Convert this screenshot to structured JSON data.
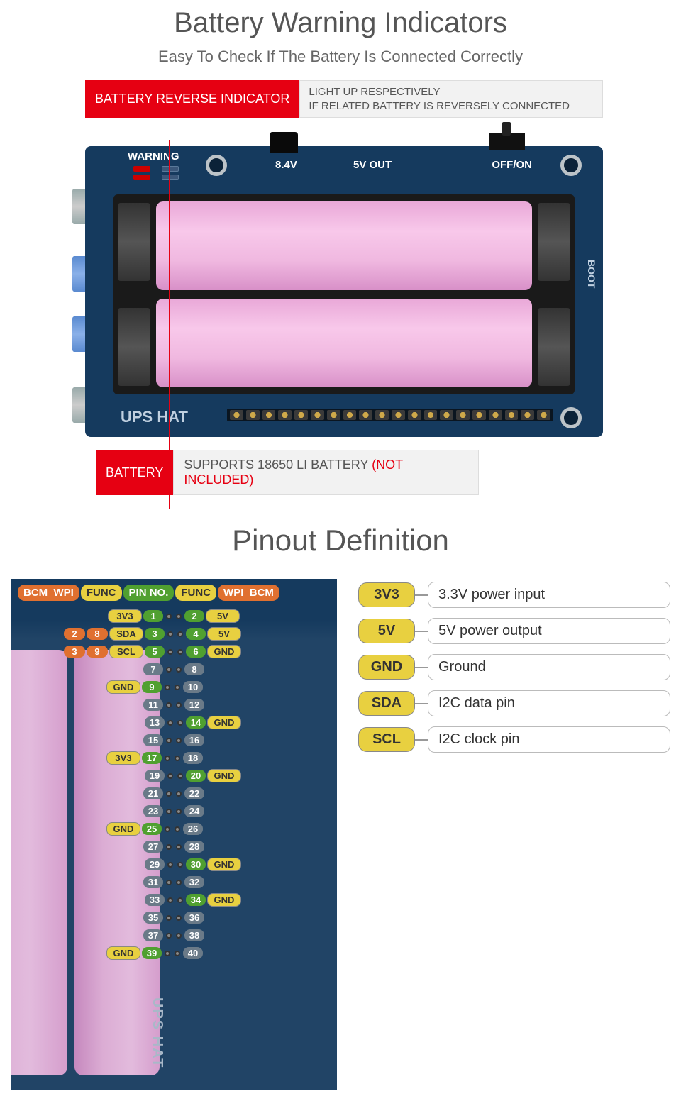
{
  "section1": {
    "title": "Battery Warning Indicators",
    "subtitle": "Easy To Check If The Battery Is Connected Correctly",
    "callout1": {
      "label": "BATTERY REVERSE INDICATOR",
      "line1": "LIGHT UP RESPECTIVELY",
      "line2": "IF RELATED BATTERY IS REVERSELY CONNECTED"
    },
    "board": {
      "warning": "WARNING",
      "v84": "8.4V",
      "v5out": "5V OUT",
      "offon": "OFF/ON",
      "upshat": "UPS HAT",
      "boot": "BOOT"
    },
    "callout2": {
      "label": "BATTERY",
      "text": "SUPPORTS 18650 LI BATTERY ",
      "note": "(NOT INCLUDED)"
    }
  },
  "section2": {
    "title": "Pinout Definition",
    "headers": {
      "bcm": "BCM",
      "wpi": "WPI",
      "func": "FUNC",
      "pinno": "PIN NO."
    },
    "rows": [
      {
        "l": {
          "func": "3V3"
        },
        "lp": 1,
        "rp": 2,
        "r": {
          "func": "5V"
        }
      },
      {
        "l": {
          "bcm": "2",
          "wpi": "8",
          "func": "SDA"
        },
        "lp": 3,
        "rp": 4,
        "r": {
          "func": "5V"
        }
      },
      {
        "l": {
          "bcm": "3",
          "wpi": "9",
          "func": "SCL"
        },
        "lp": 5,
        "rp": 6,
        "r": {
          "func": "GND"
        }
      },
      {
        "lp": 7,
        "rp": 8
      },
      {
        "l": {
          "func": "GND"
        },
        "lp": 9,
        "rp": 10
      },
      {
        "lp": 11,
        "rp": 12
      },
      {
        "lp": 13,
        "rp": 14,
        "r": {
          "func": "GND"
        }
      },
      {
        "lp": 15,
        "rp": 16
      },
      {
        "l": {
          "func": "3V3"
        },
        "lp": 17,
        "rp": 18
      },
      {
        "lp": 19,
        "rp": 20,
        "r": {
          "func": "GND"
        }
      },
      {
        "lp": 21,
        "rp": 22
      },
      {
        "lp": 23,
        "rp": 24
      },
      {
        "l": {
          "func": "GND"
        },
        "lp": 25,
        "rp": 26
      },
      {
        "lp": 27,
        "rp": 28
      },
      {
        "lp": 29,
        "rp": 30,
        "r": {
          "func": "GND"
        }
      },
      {
        "lp": 31,
        "rp": 32
      },
      {
        "lp": 33,
        "rp": 34,
        "r": {
          "func": "GND"
        }
      },
      {
        "lp": 35,
        "rp": 36
      },
      {
        "lp": 37,
        "rp": 38
      },
      {
        "l": {
          "func": "GND"
        },
        "lp": 39,
        "rp": 40
      }
    ],
    "legend": [
      {
        "tag": "3V3",
        "desc": "3.3V power input"
      },
      {
        "tag": "5V",
        "desc": "5V power output"
      },
      {
        "tag": "GND",
        "desc": "Ground"
      },
      {
        "tag": "SDA",
        "desc": "I2C data pin"
      },
      {
        "tag": "SCL",
        "desc": "I2C clock pin"
      }
    ],
    "upshat": "UPS HAT"
  },
  "colors": {
    "accent_red": "#e60012",
    "board_blue": "#153a5e",
    "pill_orange": "#e07030",
    "pill_yellow": "#e8d040",
    "pill_green": "#50a030",
    "pill_gray": "#6a7a88",
    "battery_pink": "#f0b8e0"
  }
}
